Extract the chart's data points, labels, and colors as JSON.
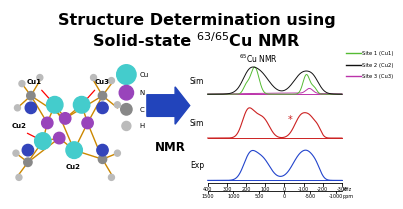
{
  "title_line1": "Structure Determination using",
  "title_line2_pre": "Solid-state ",
  "title_line2_sup": "63/65",
  "title_line2_post": "Cu NMR",
  "title_fontsize": 11.5,
  "bg_color": "#ffffff",
  "nmr_title": "$^{65}$Cu NMR",
  "legend_entries": [
    "Site 1 (Cu1)",
    "Site 2 (Cu2)",
    "Site 3 (Cu3)"
  ],
  "legend_colors": [
    "#55bb33",
    "#111111",
    "#bb33aa"
  ],
  "sim_label": "Sim",
  "exp_label": "Exp",
  "arrow_color": "#2244bb",
  "sim_color_top_green": "#55bb33",
  "sim_color_top_black": "#111111",
  "sim_color_top_pink": "#bb33aa",
  "sim_color_mid": "#cc2222",
  "exp_color": "#2244cc",
  "star_label": "*",
  "khz_ticks": [
    400,
    300,
    200,
    100,
    0,
    -100,
    -200,
    -300
  ],
  "khz_labels": [
    "400",
    "300",
    "200",
    "100",
    "0",
    "-100",
    "-200",
    "-300"
  ],
  "ppm_ticks": [
    1500,
    1000,
    500,
    0,
    -500,
    -1000
  ],
  "ppm_labels": [
    "1500",
    "1000",
    "500",
    "0",
    "-500",
    "-1000"
  ],
  "mol_atoms": {
    "cu_color": "#44cccc",
    "n_color": "#9944bb",
    "c_color": "#888888",
    "h_color": "#bbbbbb",
    "bond_color": "#cc8800",
    "cu_r": 0.055,
    "n_r": 0.038,
    "c_r": 0.028,
    "h_r": 0.02
  }
}
